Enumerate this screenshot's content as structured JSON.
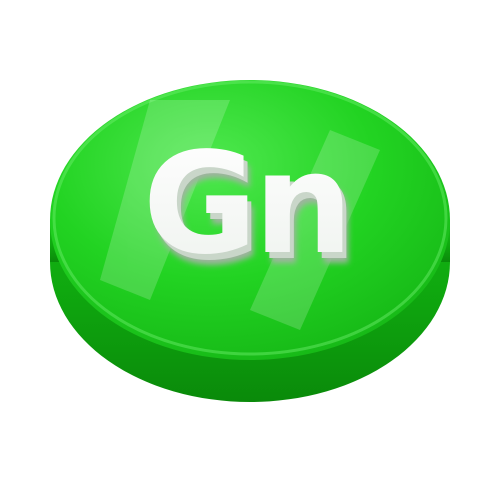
{
  "app_icon": {
    "label": "Gn",
    "icon_name": "coin-badge-icon",
    "colors": {
      "face": "#22d322",
      "face_light": "#4fe84f",
      "face_dark": "#16b816",
      "rim": "#0fa80f",
      "rim_dark": "#0a8a0a",
      "letter": "#ffffff",
      "letter_shadow": "#c9d6c9"
    }
  }
}
